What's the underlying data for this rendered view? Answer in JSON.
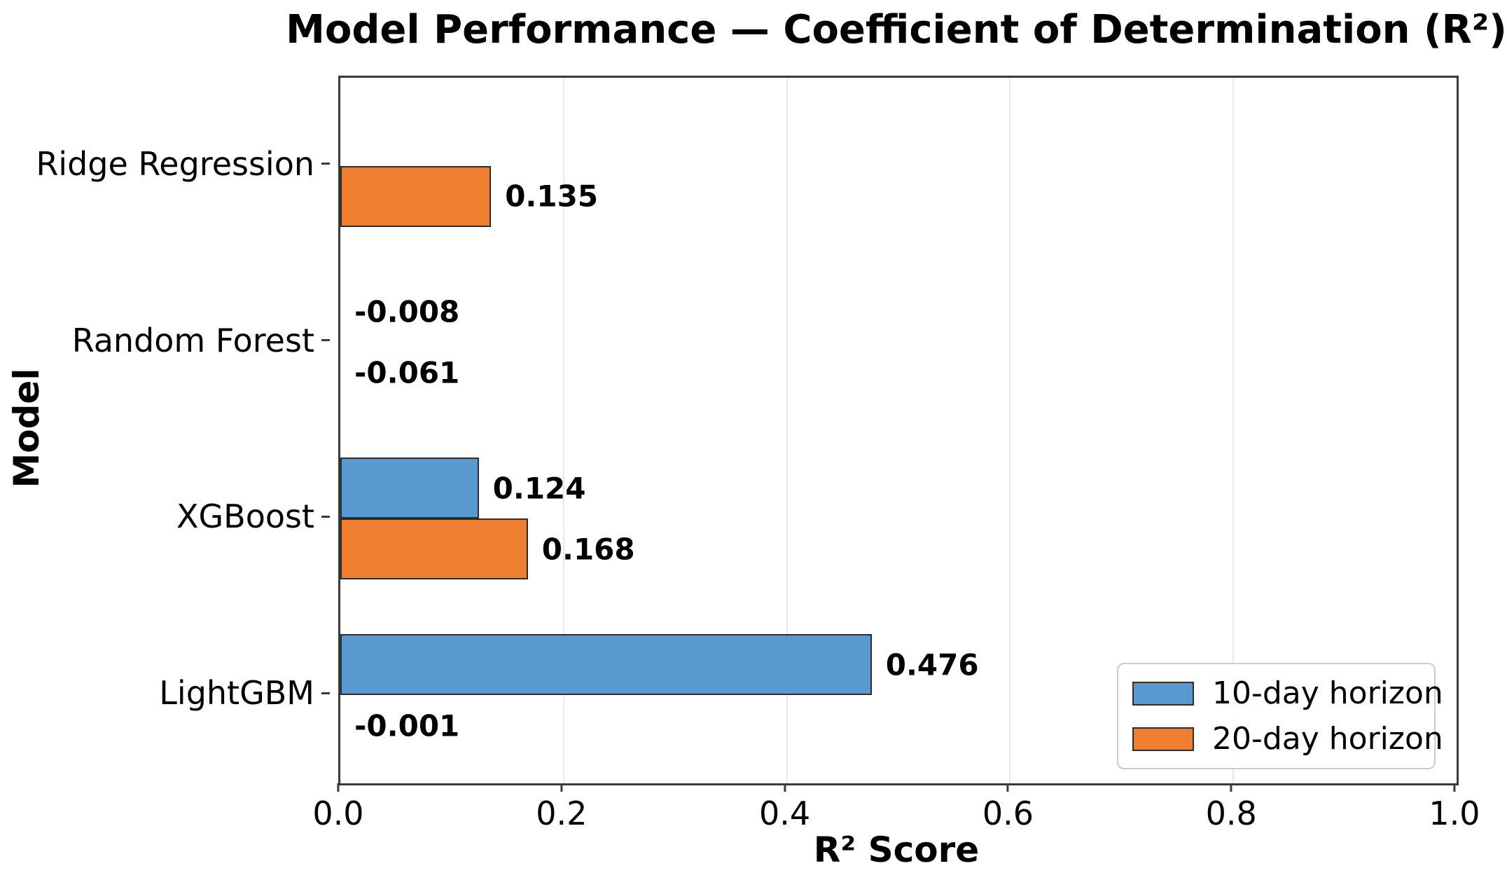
{
  "chart_data": {
    "type": "bar",
    "orientation": "horizontal",
    "title": "Model Performance — Coefficient of Determination (R²)",
    "xlabel": "R² Score",
    "ylabel": "Model",
    "categories": [
      "Ridge Regression",
      "Random Forest",
      "XGBoost",
      "LightGBM"
    ],
    "series": [
      {
        "name": "10-day horizon",
        "color": "#5a99d0",
        "values": [
          null,
          -0.008,
          0.124,
          0.476
        ],
        "labels": [
          "",
          "-0.008",
          "0.124",
          "0.476"
        ]
      },
      {
        "name": "20-day horizon",
        "color": "#ee7e32",
        "values": [
          0.135,
          -0.061,
          0.168,
          -0.001
        ],
        "labels": [
          "0.135",
          "-0.061",
          "0.168",
          "-0.001"
        ]
      }
    ],
    "xlim": [
      0.0,
      1.0
    ],
    "x_ticks": [
      0.0,
      0.2,
      0.4,
      0.6,
      0.8,
      1.0
    ],
    "x_tick_labels": [
      "0.0",
      "0.2",
      "0.4",
      "0.6",
      "0.8",
      "1.0"
    ],
    "grid": "vertical-light-gray",
    "legend_position": "lower right",
    "bar_edge_color": "#2d2d2d",
    "value_label_color": "#000000"
  }
}
